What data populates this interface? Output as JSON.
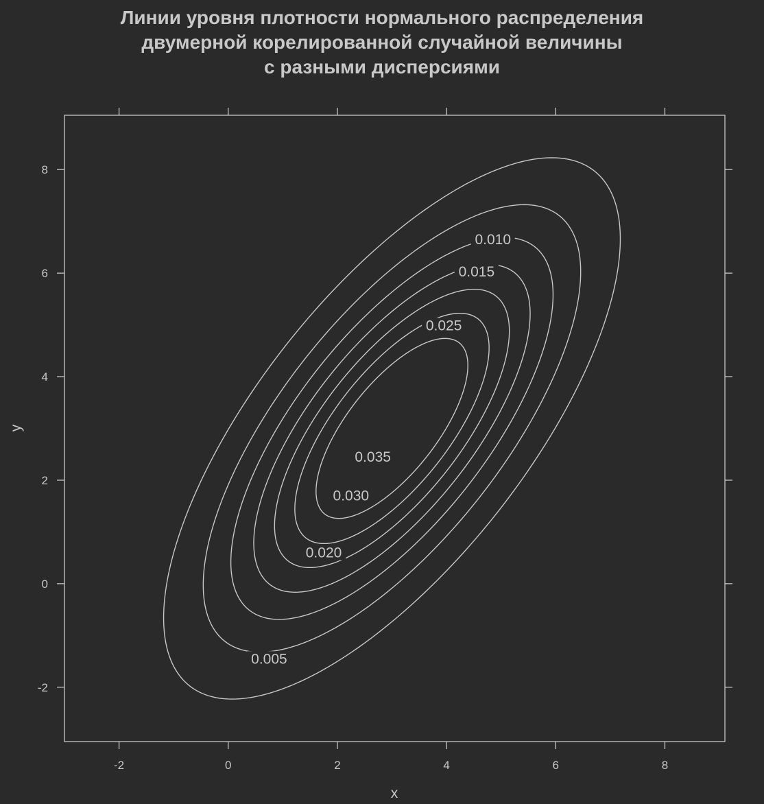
{
  "chart_data": {
    "type": "contour",
    "title_lines": [
      "Линии уровня плотности нормального распределения",
      "двумерной корелированной случайной величины",
      "с разными дисперсиями"
    ],
    "xlabel": "x",
    "ylabel": "y",
    "xlim": [
      -3.0,
      9.1
    ],
    "ylim": [
      -3.05,
      9.05
    ],
    "xticks": [
      -2,
      0,
      2,
      4,
      6,
      8
    ],
    "yticks": [
      -2,
      0,
      2,
      4,
      6,
      8
    ],
    "xtick_labels": [
      "-2",
      "0",
      "2",
      "4",
      "6",
      "8"
    ],
    "ytick_labels": [
      "-2",
      "0",
      "2",
      "4",
      "6",
      "8"
    ],
    "grid": false,
    "line_color": "#c8c8c8",
    "background": "#2a2a2a",
    "distribution": {
      "mean": [
        3,
        3
      ],
      "sd": [
        2,
        2.5
      ],
      "correlation": 0.7
    },
    "levels": [
      0.005,
      0.01,
      0.015,
      0.02,
      0.025,
      0.03,
      0.035
    ],
    "contour_labels": [
      {
        "text": "0.005",
        "x": 0.75,
        "y": -1.45
      },
      {
        "text": "0.010",
        "x": 4.85,
        "y": 6.65
      },
      {
        "text": "0.015",
        "x": 4.55,
        "y": 6.03
      },
      {
        "text": "0.020",
        "x": 1.75,
        "y": 0.6
      },
      {
        "text": "0.025",
        "x": 3.95,
        "y": 4.99
      },
      {
        "text": "0.030",
        "x": 2.25,
        "y": 1.7
      },
      {
        "text": "0.035",
        "x": 2.65,
        "y": 2.45
      }
    ]
  }
}
